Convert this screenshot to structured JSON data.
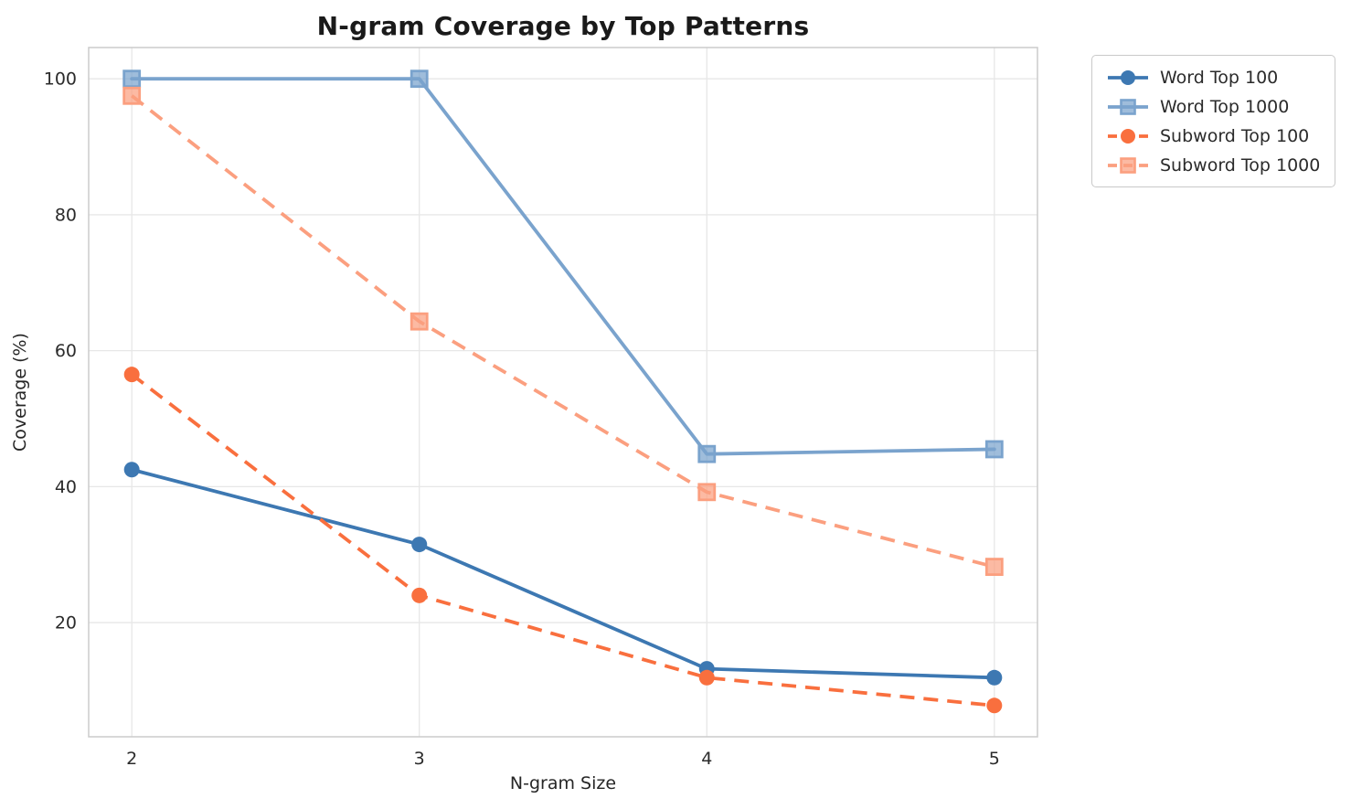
{
  "chart_data": {
    "type": "line",
    "title": "N-gram Coverage by Top Patterns",
    "xlabel": "N-gram Size",
    "ylabel": "Coverage (%)",
    "x": [
      2,
      3,
      4,
      5
    ],
    "xtick_labels": [
      "2",
      "3",
      "4",
      "5"
    ],
    "yticks": [
      20,
      40,
      60,
      80,
      100
    ],
    "xlim": [
      1.85,
      5.15
    ],
    "ylim": [
      3.2,
      104.6
    ],
    "grid": true,
    "legend_position": "outside-top-right",
    "series": [
      {
        "name": "Word Top 100",
        "values": [
          42.5,
          31.5,
          13.2,
          11.9
        ],
        "color": "#3D78B2",
        "line_style": "solid",
        "marker": "circle"
      },
      {
        "name": "Word Top 1000",
        "values": [
          100,
          100,
          44.8,
          45.5
        ],
        "color": "#7AA3CD",
        "line_style": "solid",
        "marker": "square"
      },
      {
        "name": "Subword Top 100",
        "values": [
          56.5,
          24.0,
          11.9,
          7.8
        ],
        "color": "#F96F3E",
        "line_style": "dashed",
        "marker": "circle"
      },
      {
        "name": "Subword Top 1000",
        "values": [
          97.5,
          64.3,
          39.2,
          28.2
        ],
        "color": "#FB9F7F",
        "line_style": "dashed",
        "marker": "square"
      }
    ],
    "colors": {
      "grid": "#e7e7e7",
      "spine": "#cbcbcb",
      "tick_label": "#2b2b2b",
      "title": "#1a1a1a",
      "background": "#ffffff"
    }
  }
}
